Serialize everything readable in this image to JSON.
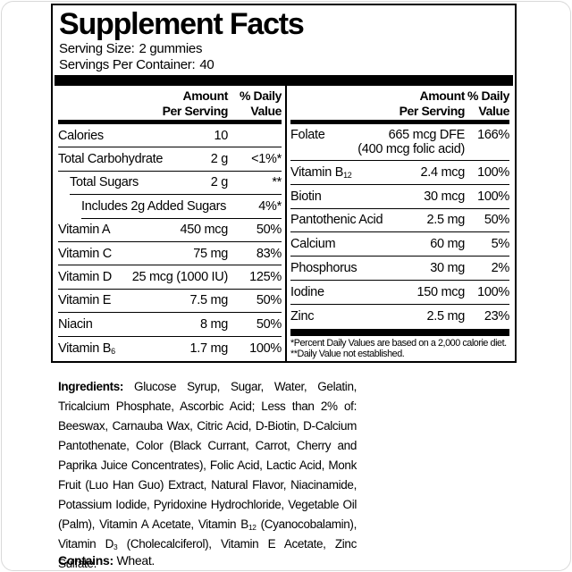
{
  "colors": {
    "text": "#000000",
    "background": "#ffffff",
    "rule": "#000000"
  },
  "title": "Supplement Facts",
  "serving": {
    "size_label": "Serving Size:",
    "size_value": "2 gummies",
    "per_container_label": "Servings Per Container:",
    "per_container_value": "40"
  },
  "table": {
    "header": {
      "amount_line1": "Amount",
      "amount_line2": "Per Serving",
      "dv_line1": "% Daily",
      "dv_line2": "Value"
    },
    "left_rows": [
      {
        "name": "Calories",
        "amount": "10",
        "dv": "",
        "indent": 0
      },
      {
        "name": "Total Carbohydrate",
        "amount": "2 g",
        "dv": "<1%*",
        "indent": 0
      },
      {
        "name": "Total Sugars",
        "amount": "2 g",
        "dv": "**",
        "indent": 1
      },
      {
        "name": "Includes 2g Added Sugars",
        "amount": "",
        "dv": "4%*",
        "indent": 2
      },
      {
        "name": "Vitamin A",
        "amount": "450 mcg",
        "dv": "50%",
        "indent": 0
      },
      {
        "name": "Vitamin C",
        "amount": "75 mg",
        "dv": "83%",
        "indent": 0
      },
      {
        "name": "Vitamin D",
        "amount": "25 mcg (1000 IU)",
        "dv": "125%",
        "indent": 0
      },
      {
        "name": "Vitamin E",
        "amount": "7.5 mg",
        "dv": "50%",
        "indent": 0
      },
      {
        "name": "Niacin",
        "amount": "8 mg",
        "dv": "50%",
        "indent": 0
      },
      {
        "name": "Vitamin B",
        "name_sub": "6",
        "amount": "1.7 mg",
        "dv": "100%",
        "indent": 0
      }
    ],
    "right_rows": [
      {
        "name": "Folate",
        "amount": "665 mcg DFE",
        "dv": "166%",
        "note": "(400 mcg folic acid)"
      },
      {
        "name": "Vitamin B",
        "name_sub": "12",
        "amount": "2.4 mcg",
        "dv": "100%"
      },
      {
        "name": "Biotin",
        "amount": "30 mcg",
        "dv": "100%"
      },
      {
        "name": "Pantothenic Acid",
        "amount": "2.5 mg",
        "dv": "50%"
      },
      {
        "name": "Calcium",
        "amount": "60 mg",
        "dv": "5%"
      },
      {
        "name": "Phosphorus",
        "amount": "30 mg",
        "dv": "2%"
      },
      {
        "name": "Iodine",
        "amount": "150 mcg",
        "dv": "100%"
      },
      {
        "name": "Zinc",
        "amount": "2.5 mg",
        "dv": "23%"
      }
    ],
    "footnotes": [
      "*Percent Daily Values are based on a 2,000 calorie diet.",
      "**Daily Value not established."
    ]
  },
  "ingredients": {
    "segments": [
      {
        "bold": true,
        "text": "Ingredients:"
      },
      {
        "text": " Glucose Syrup, Sugar, Water, Gelatin, Tricalcium Phosphate, Ascorbic Acid; Less than 2% of: Beeswax, Carnauba Wax, Citric Acid, D-Biotin, D-Calcium Pantothenate, Color (Black Currant, Carrot, Cherry and Paprika Juice Concentrates), Folic Acid, Lactic Acid, Monk Fruit (Luo Han Guo) Extract, Natural Flavor, Niacinamide, Potassium Iodide, Pyridoxine Hydrochloride, Vegetable Oil (Palm), Vitamin A Acetate, Vitamin B"
      },
      {
        "sub": "12"
      },
      {
        "text": " (Cyanocobalamin), Vitamin D"
      },
      {
        "sub": "3"
      },
      {
        "text": " (Cholecalciferol), Vitamin E Acetate, Zinc Sulfate."
      }
    ]
  },
  "contains": {
    "segments": [
      {
        "bold": true,
        "text": "Contains:"
      },
      {
        "text": " Wheat."
      }
    ]
  }
}
